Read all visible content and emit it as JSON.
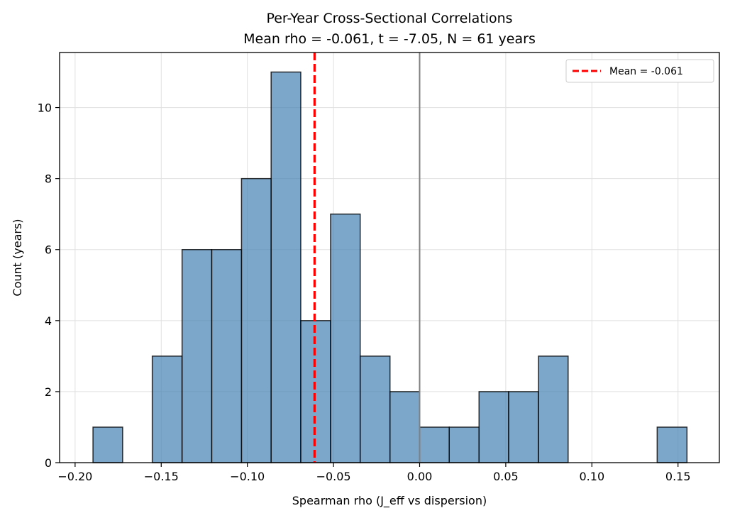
{
  "chart_data": {
    "type": "bar",
    "title": "Per-Year Cross-Sectional Correlations",
    "subtitle": "Mean rho = -0.061, t = -7.05, N = 61 years",
    "xlabel": "Spearman rho (J_eff vs dispersion)",
    "ylabel": "Count (years)",
    "xlim": [
      -0.209,
      0.174
    ],
    "ylim": [
      0,
      11.55
    ],
    "xticks": [
      -0.2,
      -0.15,
      -0.1,
      -0.05,
      0.0,
      0.05,
      0.1,
      0.15
    ],
    "xtick_labels": [
      "−0.20",
      "−0.15",
      "−0.10",
      "−0.05",
      "0.00",
      "0.05",
      "0.10",
      "0.15"
    ],
    "yticks": [
      0,
      2,
      4,
      6,
      8,
      10
    ],
    "ytick_labels": [
      "0",
      "2",
      "4",
      "6",
      "8",
      "10"
    ],
    "bins": [
      {
        "x0": -0.1896,
        "x1": -0.1724,
        "count": 1
      },
      {
        "x0": -0.1552,
        "x1": -0.1379,
        "count": 3
      },
      {
        "x0": -0.1379,
        "x1": -0.1207,
        "count": 6
      },
      {
        "x0": -0.1207,
        "x1": -0.1034,
        "count": 6
      },
      {
        "x0": -0.1034,
        "x1": -0.0862,
        "count": 8
      },
      {
        "x0": -0.0862,
        "x1": -0.069,
        "count": 11
      },
      {
        "x0": -0.069,
        "x1": -0.0517,
        "count": 4
      },
      {
        "x0": -0.0517,
        "x1": -0.0345,
        "count": 7
      },
      {
        "x0": -0.0345,
        "x1": -0.0172,
        "count": 3
      },
      {
        "x0": -0.0172,
        "x1": 0.0,
        "count": 2
      },
      {
        "x0": 0.0,
        "x1": 0.0172,
        "count": 1
      },
      {
        "x0": 0.0172,
        "x1": 0.0345,
        "count": 1
      },
      {
        "x0": 0.0345,
        "x1": 0.0517,
        "count": 2
      },
      {
        "x0": 0.0517,
        "x1": 0.069,
        "count": 2
      },
      {
        "x0": 0.069,
        "x1": 0.0862,
        "count": 3
      },
      {
        "x0": 0.1379,
        "x1": 0.1552,
        "count": 1
      }
    ],
    "mean_line": {
      "x": -0.061,
      "label": "Mean = -0.061"
    },
    "zero_line": {
      "x": 0
    },
    "legend_position": "top-right",
    "grid": true,
    "colors": {
      "bar_fill": "#4682b4",
      "bar_edge": "#000000",
      "mean_line": "#ff0000",
      "zero_line": "#808080",
      "grid": "#e0e0e0"
    }
  }
}
